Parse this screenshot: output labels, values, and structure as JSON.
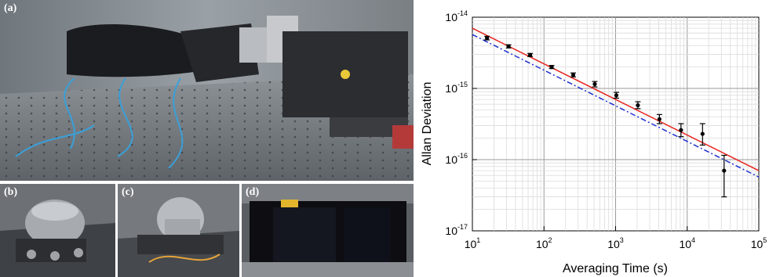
{
  "panels": {
    "a": "(a)",
    "b": "(b)",
    "c": "(c)",
    "d": "(d)"
  },
  "photos": {
    "a": {
      "label": "(a)"
    },
    "b": {
      "label": "(b)"
    },
    "c": {
      "label": "(c)"
    },
    "d": {
      "label": "(d)"
    }
  },
  "chart_data": {
    "type": "scatter",
    "title": "",
    "xlabel": "Averaging Time (s)",
    "ylabel": "Allan Deviation",
    "xscale": "log",
    "yscale": "log",
    "xlim": [
      10,
      100000
    ],
    "ylim": [
      1e-17,
      1e-14
    ],
    "grid": true,
    "x_ticks": [
      {
        "base": "10",
        "exp": "1"
      },
      {
        "base": "10",
        "exp": "2"
      },
      {
        "base": "10",
        "exp": "3"
      },
      {
        "base": "10",
        "exp": "4"
      },
      {
        "base": "10",
        "exp": "5"
      }
    ],
    "y_ticks": [
      {
        "base": "10",
        "exp": "-14"
      },
      {
        "base": "10",
        "exp": "-15"
      },
      {
        "base": "10",
        "exp": "-16"
      },
      {
        "base": "10",
        "exp": "-17"
      }
    ],
    "points": [
      {
        "x": 16,
        "y": 5.1e-15,
        "err_low": 4.8e-15,
        "err_high": 5.4e-15
      },
      {
        "x": 32,
        "y": 3.9e-15,
        "err_low": 3.7e-15,
        "err_high": 4.1e-15
      },
      {
        "x": 64,
        "y": 2.95e-15,
        "err_low": 2.8e-15,
        "err_high": 3.1e-15
      },
      {
        "x": 128,
        "y": 2e-15,
        "err_low": 1.9e-15,
        "err_high": 2.1e-15
      },
      {
        "x": 256,
        "y": 1.55e-15,
        "err_low": 1.45e-15,
        "err_high": 1.65e-15
      },
      {
        "x": 512,
        "y": 1.15e-15,
        "err_low": 1.05e-15,
        "err_high": 1.25e-15
      },
      {
        "x": 1024,
        "y": 8e-16,
        "err_low": 7.3e-16,
        "err_high": 8.8e-16
      },
      {
        "x": 2048,
        "y": 5.8e-16,
        "err_low": 5.2e-16,
        "err_high": 6.5e-16
      },
      {
        "x": 4096,
        "y": 3.7e-16,
        "err_low": 3.2e-16,
        "err_high": 4.3e-16
      },
      {
        "x": 8192,
        "y": 2.6e-16,
        "err_low": 2.1e-16,
        "err_high": 3.2e-16
      },
      {
        "x": 16384,
        "y": 2.3e-16,
        "err_low": 1.6e-16,
        "err_high": 3.2e-16
      },
      {
        "x": 32768,
        "y": 7e-17,
        "err_low": 3e-17,
        "err_high": 1.15e-16
      }
    ],
    "lines": [
      {
        "color": "#e8231f",
        "style": "solid",
        "x": [
          10,
          100000
        ],
        "y": [
          7e-15,
          7e-17
        ]
      },
      {
        "color": "#1f2fd0",
        "style": "dashdot",
        "x": [
          10,
          100000
        ],
        "y": [
          5.7e-15,
          5.7e-17
        ]
      }
    ]
  }
}
